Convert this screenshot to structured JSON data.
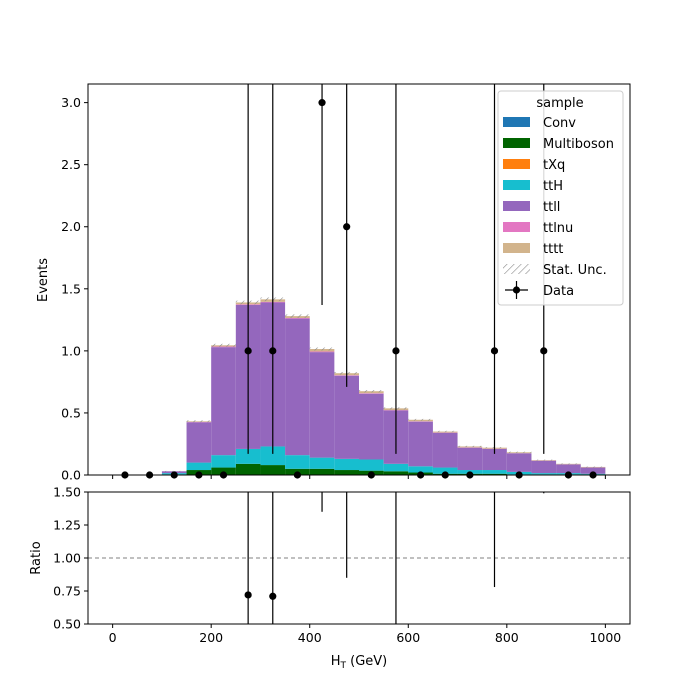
{
  "chart_data": {
    "type": "bar",
    "subtype": "stacked-histogram-with-data-and-ratio",
    "main": {
      "ylabel": "Events",
      "ylim": [
        0,
        3.15
      ],
      "yticks": [
        "0.0",
        "0.5",
        "1.0",
        "1.5",
        "2.0",
        "2.5",
        "3.0"
      ],
      "ytick_values": [
        0,
        0.5,
        1.0,
        1.5,
        2.0,
        2.5,
        3.0
      ]
    },
    "ratio": {
      "ylabel": "Ratio",
      "ylim": [
        0.5,
        1.5
      ],
      "yticks": [
        "0.50",
        "0.75",
        "1.00",
        "1.25",
        "1.50"
      ],
      "ytick_values": [
        0.5,
        0.75,
        1.0,
        1.25,
        1.5
      ],
      "reference_line": 1.0
    },
    "xlabel_main": "H",
    "xlabel_sub": "T",
    "xlabel_unit": " (GeV)",
    "xlim": [
      -50,
      1050
    ],
    "xticks": [
      "0",
      "200",
      "400",
      "600",
      "800",
      "1000"
    ],
    "xtick_values": [
      0,
      200,
      400,
      600,
      800,
      1000
    ],
    "bin_edges": [
      0,
      50,
      100,
      150,
      200,
      250,
      300,
      350,
      400,
      450,
      500,
      550,
      600,
      650,
      700,
      750,
      800,
      850,
      900,
      950,
      1000
    ],
    "series": [
      {
        "name": "Conv",
        "color": "#1f77b4",
        "values": [
          0,
          0,
          0,
          0,
          0,
          0,
          0,
          0,
          0,
          0,
          0,
          0,
          0,
          0,
          0,
          0,
          0,
          0,
          0,
          0
        ]
      },
      {
        "name": "Multiboson",
        "color": "#006400",
        "values": [
          0,
          0,
          0.005,
          0.04,
          0.06,
          0.09,
          0.08,
          0.05,
          0.05,
          0.04,
          0.035,
          0.03,
          0.02,
          0.01,
          0.01,
          0.01,
          0.005,
          0.005,
          0.005,
          0.005
        ]
      },
      {
        "name": "tXq",
        "color": "#ff7f0e",
        "values": [
          0,
          0,
          0,
          0,
          0,
          0,
          0,
          0,
          0,
          0,
          0,
          0,
          0,
          0,
          0,
          0,
          0,
          0,
          0,
          0
        ]
      },
      {
        "name": "ttH",
        "color": "#17becf",
        "values": [
          0,
          0,
          0.01,
          0.06,
          0.1,
          0.12,
          0.15,
          0.11,
          0.09,
          0.09,
          0.09,
          0.06,
          0.05,
          0.05,
          0.03,
          0.03,
          0.02,
          0.01,
          0.01,
          0.005
        ]
      },
      {
        "name": "ttll",
        "color": "#9467bd",
        "values": [
          0,
          0,
          0.015,
          0.325,
          0.87,
          1.16,
          1.16,
          1.1,
          0.85,
          0.67,
          0.53,
          0.43,
          0.36,
          0.28,
          0.18,
          0.17,
          0.15,
          0.1,
          0.07,
          0.05
        ]
      },
      {
        "name": "ttlnu",
        "color": "#e377c2",
        "values": [
          0,
          0,
          0,
          0.003,
          0.005,
          0.005,
          0.005,
          0.005,
          0.005,
          0.004,
          0.004,
          0.003,
          0.003,
          0.002,
          0.002,
          0.002,
          0.001,
          0.001,
          0.001,
          0.001
        ]
      },
      {
        "name": "tttt",
        "color": "#d2b48c",
        "values": [
          0,
          0,
          0,
          0.005,
          0.01,
          0.015,
          0.02,
          0.015,
          0.02,
          0.016,
          0.016,
          0.014,
          0.012,
          0.008,
          0.008,
          0.008,
          0.007,
          0.004,
          0.004,
          0.004
        ]
      }
    ],
    "uncertainty": {
      "name": "Stat. Unc.",
      "values": [
        0,
        0,
        0.003,
        0.008,
        0.012,
        0.015,
        0.015,
        0.014,
        0.012,
        0.01,
        0.009,
        0.008,
        0.007,
        0.006,
        0.005,
        0.005,
        0.005,
        0.004,
        0.004,
        0.003
      ]
    },
    "data_points": {
      "name": "Data",
      "x": [
        25,
        75,
        125,
        175,
        225,
        275,
        325,
        375,
        425,
        475,
        525,
        575,
        625,
        675,
        725,
        775,
        825,
        875,
        925,
        975
      ],
      "y": [
        0,
        0,
        0,
        0,
        0,
        1,
        1,
        0,
        3,
        2,
        0,
        1,
        0,
        0,
        0,
        1,
        0,
        1,
        0,
        0
      ],
      "err_up": [
        0,
        0,
        0,
        0,
        0,
        3.3,
        3.3,
        0,
        3.3,
        3.3,
        0,
        3.3,
        0,
        0,
        0,
        3.3,
        0,
        3.3,
        0,
        0
      ],
      "err_down": [
        0,
        0,
        0,
        0,
        0,
        0.83,
        0.83,
        0,
        1.63,
        1.29,
        0,
        0.83,
        0,
        0,
        0,
        0.83,
        0,
        0.83,
        0,
        0
      ]
    },
    "ratio_points": {
      "x": [
        275,
        325
      ],
      "y": [
        0.72,
        0.71
      ]
    },
    "ratio_errorbars": [
      {
        "x": 275,
        "lo": 0.5,
        "hi": 1.5
      },
      {
        "x": 325,
        "lo": 0.5,
        "hi": 1.5
      },
      {
        "x": 425,
        "lo": 1.35,
        "hi": 1.5
      },
      {
        "x": 475,
        "lo": 0.85,
        "hi": 1.5
      },
      {
        "x": 575,
        "lo": 0.5,
        "hi": 1.5
      },
      {
        "x": 775,
        "lo": 0.78,
        "hi": 1.5
      },
      {
        "x": 875,
        "lo": 1.49,
        "hi": 1.5
      }
    ],
    "legend": {
      "title": "sample",
      "placement": "top-right",
      "entries": [
        "Conv",
        "Multiboson",
        "tXq",
        "ttH",
        "ttll",
        "ttlnu",
        "tttt",
        "Stat. Unc.",
        "Data"
      ]
    }
  }
}
